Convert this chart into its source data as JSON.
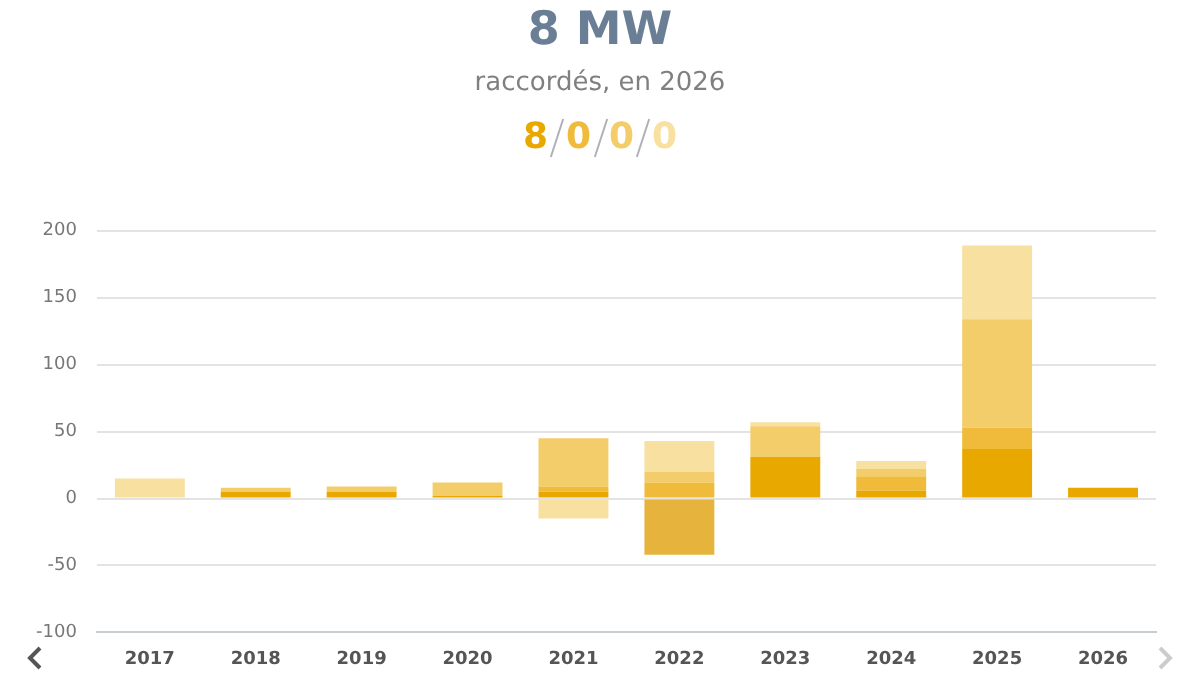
{
  "chart_data": {
    "type": "bar",
    "title": "8 MW",
    "subtitle": "raccordés, en 2026",
    "annotations": [
      "8",
      "0",
      "0",
      "0"
    ],
    "categories": [
      "2017",
      "2018",
      "2019",
      "2020",
      "2021",
      "2022",
      "2023",
      "2024",
      "2025",
      "2026"
    ],
    "series": [
      {
        "color": "#e8a800",
        "values": [
          null,
          5,
          5,
          2,
          5,
          null,
          31,
          6,
          37,
          8
        ]
      },
      {
        "color": "#f0bb3a",
        "values": [
          null,
          null,
          null,
          null,
          4,
          12,
          null,
          10,
          16,
          null
        ]
      },
      {
        "color": "#f3cd6a",
        "values": [
          null,
          3,
          4,
          10,
          36,
          8,
          23,
          6,
          81,
          null
        ]
      },
      {
        "color": "#f7e0a0",
        "values": [
          15,
          null,
          null,
          null,
          -15,
          23,
          3,
          6,
          55,
          null
        ]
      },
      {
        "color": "#e6b43c",
        "values": [
          null,
          null,
          null,
          null,
          null,
          -42,
          null,
          null,
          null,
          null
        ]
      }
    ],
    "stacked": true,
    "ylim": [
      -100,
      200
    ],
    "yticks": [
      -100,
      -50,
      0,
      50,
      100,
      150,
      200
    ],
    "grid": "y",
    "legend": false
  }
}
